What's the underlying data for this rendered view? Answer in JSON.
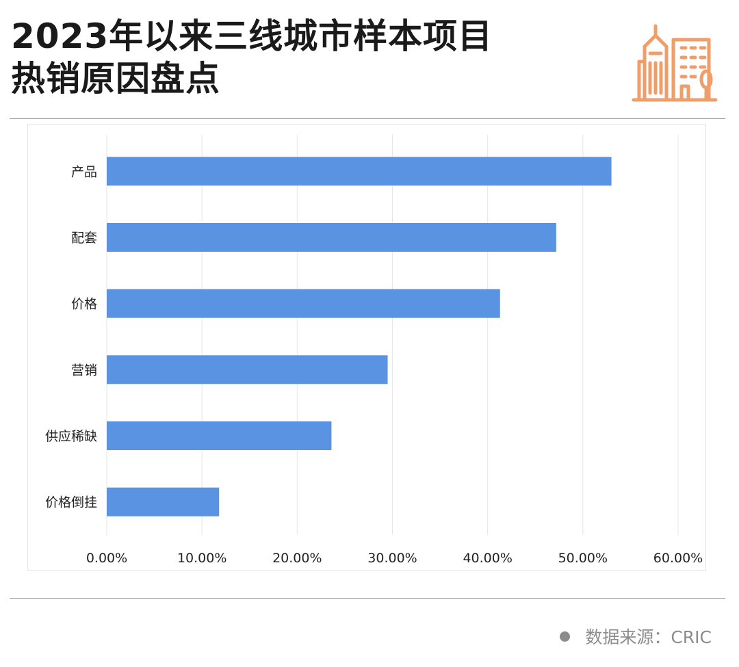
{
  "header": {
    "title_line1": "2023年以来三线城市样本项目",
    "title_line2": "热销原因盘点",
    "icon": "city-buildings-icon",
    "icon_color": "#EF9E6A"
  },
  "footer": {
    "source": "数据来源：CRIC"
  },
  "colors": {
    "bar": "#5B93E3",
    "grid": "#E6E6E6",
    "text": "#222222"
  },
  "chart_data": {
    "type": "bar",
    "orientation": "horizontal",
    "categories": [
      "产品",
      "配套",
      "价格",
      "营销",
      "供应稀缺",
      "价格倒挂"
    ],
    "values": [
      53.0,
      47.2,
      41.3,
      29.5,
      23.6,
      11.8
    ],
    "unit": "%",
    "xlim": [
      0,
      60
    ],
    "x_ticks": [
      "0.00%",
      "10.00%",
      "20.00%",
      "30.00%",
      "40.00%",
      "50.00%",
      "60.00%"
    ],
    "grid": true,
    "legend": "none",
    "title": "",
    "xlabel": "",
    "ylabel": ""
  }
}
